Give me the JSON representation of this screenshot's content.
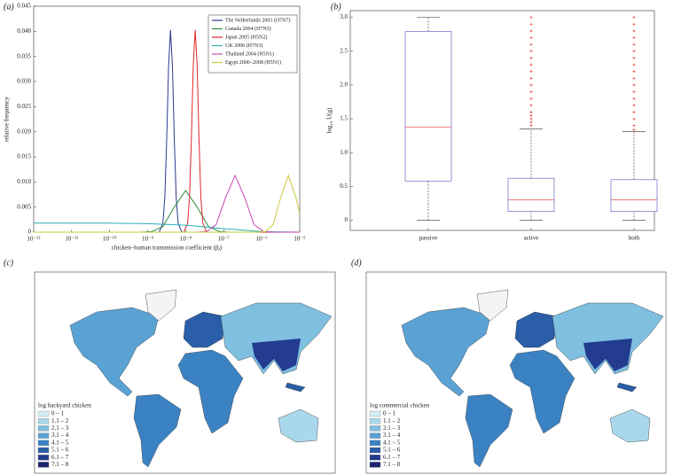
{
  "chart_data": [
    {
      "type": "line",
      "panel_label": "(a)",
      "x_label": "chicken–human transmission coefficient (βⱼ)",
      "y_label": "relative frequency",
      "xscale": "log",
      "xlim": [
        1e-12,
        1e-05
      ],
      "xticks": [
        {
          "value": 1e-12,
          "label": "10⁻¹²"
        },
        {
          "value": 1e-11,
          "label": "10⁻¹¹"
        },
        {
          "value": 1e-10,
          "label": "10⁻¹⁰"
        },
        {
          "value": 1e-09,
          "label": "10⁻⁹"
        },
        {
          "value": 1e-08,
          "label": "10⁻⁸"
        },
        {
          "value": 1e-07,
          "label": "10⁻⁷"
        },
        {
          "value": 1e-06,
          "label": "10⁻⁶"
        },
        {
          "value": 1e-05,
          "label": "10⁻⁵"
        }
      ],
      "ylim": [
        0,
        0.045
      ],
      "yticks": [
        0,
        0.005,
        {
          "value": 0.01,
          "label": "0.010"
        },
        0.015,
        {
          "value": 0.02,
          "label": "0.020"
        },
        0.025,
        {
          "value": 0.03,
          "label": "0.030"
        },
        0.035,
        {
          "value": 0.04,
          "label": "0.040"
        },
        0.045
      ],
      "legend": "upper right",
      "series": [
        {
          "name": "The Netherlands 2003 (H7N7)",
          "color": "#2b3990",
          "x": [
            1e-12,
            2e-09,
            2.51e-09,
            2.82e-09,
            3.16e-09,
            3.55e-09,
            3.98e-09,
            4.47e-09,
            5.01e-09,
            5.62e-09,
            6.31e-09,
            7.94e-09,
            1e-05
          ],
          "values": [
            0,
            0,
            0.0018,
            0.0069,
            0.0185,
            0.0332,
            0.0403,
            0.0332,
            0.0185,
            0.0069,
            0.0018,
            0,
            0
          ]
        },
        {
          "name": "Canada 2004 (H7N3)",
          "color": "#2e8b3a",
          "x": [
            1e-12,
            6.31e-10,
            1.26e-09,
            2.51e-09,
            5.01e-09,
            1e-08,
            2e-08,
            3.98e-08,
            7.94e-08,
            1.58e-07,
            1e-05
          ],
          "values": [
            0,
            0,
            0.0001,
            0.0011,
            0.005,
            0.0083,
            0.005,
            0.0011,
            0.0001,
            0,
            0
          ]
        },
        {
          "name": "Japan 2005 (H5N2)",
          "color": "#e0262b",
          "x": [
            1e-12,
            8.91e-09,
            1.12e-08,
            1.26e-08,
            1.41e-08,
            1.58e-08,
            1.78e-08,
            2e-08,
            2.24e-08,
            2.51e-08,
            2.82e-08,
            3.55e-08,
            1e-05
          ],
          "values": [
            0,
            0,
            0.0018,
            0.0069,
            0.0185,
            0.0332,
            0.0403,
            0.0332,
            0.0185,
            0.0069,
            0.0018,
            0,
            0
          ]
        },
        {
          "name": "UK 2006 (H7N3)",
          "color": "#2ab0b0",
          "x": [
            1e-12,
            1e-10,
            1e-09,
            1e-08,
            1e-07,
            1e-06,
            1e-05
          ],
          "values": [
            0.0018,
            0.0018,
            0.0017,
            0.0014,
            0.0007,
            0.0001,
            0
          ]
        },
        {
          "name": "Thailand 2004 (H5N1)",
          "color": "#c844b4",
          "x": [
            1e-12,
            2e-08,
            3.55e-08,
            6.31e-08,
            1.12e-07,
            2e-07,
            3.55e-07,
            6.31e-07,
            1.12e-06,
            2e-06,
            1e-05
          ],
          "values": [
            0,
            0,
            0.0001,
            0.0015,
            0.0069,
            0.0113,
            0.0069,
            0.0015,
            0.0001,
            0,
            0
          ]
        },
        {
          "name": "Egypt 2006–2008 (H5N1)",
          "color": "#c8c83a",
          "x": [
            1e-12,
            7.94e-07,
            1.26e-06,
            2e-06,
            3.16e-06,
            5.01e-06,
            7.94e-06,
            1e-05
          ],
          "values": [
            0,
            0,
            0.0001,
            0.0015,
            0.0069,
            0.0113,
            0.0069,
            0.0037
          ]
        }
      ]
    },
    {
      "type": "box",
      "panel_label": "(b)",
      "y_label": "log₁₀ U(g)",
      "categories": [
        "passive",
        "active",
        "both"
      ],
      "ylim": [
        -0.15,
        3.1
      ],
      "yticks": [
        0,
        0.5,
        {
          "value": 1,
          "label": "1.0"
        },
        1.5,
        {
          "value": 2,
          "label": "2.0"
        },
        2.5,
        {
          "value": 3,
          "label": "3.0"
        }
      ],
      "box_color": "#6a6ac8",
      "median_color": "#e05050",
      "outlier_color": "#e02020",
      "boxes": [
        {
          "min": 0,
          "q1": 0.58,
          "median": 1.38,
          "q3": 2.79,
          "max": 3.0,
          "outliers": []
        },
        {
          "min": 0,
          "q1": 0.13,
          "median": 0.3,
          "q3": 0.62,
          "max": 1.35,
          "outliers": [
            1.4,
            1.45,
            1.5,
            1.55,
            1.6,
            1.7,
            1.8,
            1.9,
            2.0,
            2.1,
            2.2,
            2.3,
            2.4,
            2.5,
            2.6,
            2.7,
            2.8,
            2.9,
            3.0
          ]
        },
        {
          "min": 0,
          "q1": 0.13,
          "median": 0.3,
          "q3": 0.6,
          "max": 1.31,
          "outliers": [
            1.34,
            1.4,
            1.5,
            1.6,
            1.7,
            1.8,
            1.9,
            2.0,
            2.1,
            2.2,
            2.3,
            2.4,
            2.5,
            2.6,
            2.7,
            2.8,
            2.9,
            3.0
          ]
        }
      ]
    }
  ],
  "maps": [
    {
      "panel_label": "(c)",
      "legend_title": "log backyard chicken",
      "legend_items": [
        "0 – 1",
        "1.1 – 2",
        "2.1 – 3",
        "3.1 – 4",
        "4.1 – 5",
        "5.1 – 6",
        "6.1 – 7",
        "7.1 – 8"
      ],
      "legend_colors": [
        "#d4eef5",
        "#a9d8ec",
        "#7fbfe0",
        "#5aa2d3",
        "#3b82c2",
        "#2a5ea8",
        "#233c8f",
        "#1c2470"
      ]
    },
    {
      "panel_label": "(d)",
      "legend_title": "log commercial chicken",
      "legend_items": [
        "0 – 1",
        "1.1 – 2",
        "2.1 – 3",
        "3.1 – 4",
        "4.1 – 5",
        "5.1 – 6",
        "6.1 – 7",
        "7.1 – 8"
      ],
      "legend_colors": [
        "#d4eef5",
        "#a9d8ec",
        "#7fbfe0",
        "#5aa2d3",
        "#3b82c2",
        "#2a5ea8",
        "#233c8f",
        "#1c2470"
      ]
    }
  ]
}
